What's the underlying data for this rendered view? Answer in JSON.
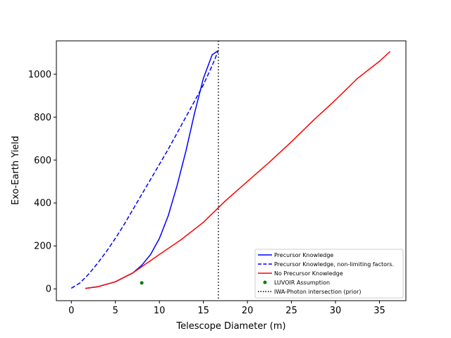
{
  "chart_data": {
    "type": "line",
    "xlabel": "Telescope Diameter (m)",
    "ylabel": "Exo-Earth Yield",
    "xlim": [
      -1.7,
      38.0
    ],
    "ylim": [
      -55,
      1155
    ],
    "xticks": [
      0,
      5,
      10,
      15,
      20,
      25,
      30,
      35
    ],
    "yticks": [
      0,
      200,
      400,
      600,
      800,
      1000
    ],
    "grid": false,
    "legend_position": "lower right",
    "series": [
      {
        "name": "Precursor Knowledge",
        "style": "solid",
        "color": "#0000ff",
        "x": [
          1.6,
          3,
          5,
          7,
          8,
          9,
          10,
          11,
          12,
          13,
          14,
          15,
          16,
          16.7
        ],
        "y": [
          2,
          10,
          33,
          75,
          110,
          160,
          235,
          340,
          480,
          640,
          820,
          980,
          1090,
          1110
        ]
      },
      {
        "name": "Precursor Knowledge, non-limiting factors.",
        "style": "dashed",
        "color": "#0000ff",
        "x": [
          0,
          1,
          2,
          3,
          4,
          5,
          6,
          7,
          8,
          9,
          10,
          11,
          12,
          13,
          14,
          15,
          16,
          16.7
        ],
        "y": [
          3,
          28,
          70,
          120,
          175,
          235,
          300,
          370,
          440,
          510,
          580,
          650,
          725,
          800,
          875,
          950,
          1040,
          1110
        ]
      },
      {
        "name": "No Precursor Knowledge",
        "style": "solid",
        "color": "#ff0000",
        "x": [
          1.6,
          3,
          5,
          7,
          10,
          12.5,
          15,
          17.5,
          20,
          22.5,
          25,
          27.5,
          30,
          32.5,
          35,
          36.2
        ],
        "y": [
          2,
          10,
          33,
          75,
          160,
          230,
          310,
          410,
          500,
          590,
          685,
          785,
          880,
          980,
          1060,
          1105
        ]
      }
    ],
    "points": [
      {
        "name": "LUVOIR Assumption",
        "color": "#008000",
        "x": 8,
        "y": 28
      }
    ],
    "vlines": [
      {
        "name": "IWA-Photon intersection (prior)",
        "style": "dotted",
        "color": "#000000",
        "x": 16.7
      }
    ]
  }
}
